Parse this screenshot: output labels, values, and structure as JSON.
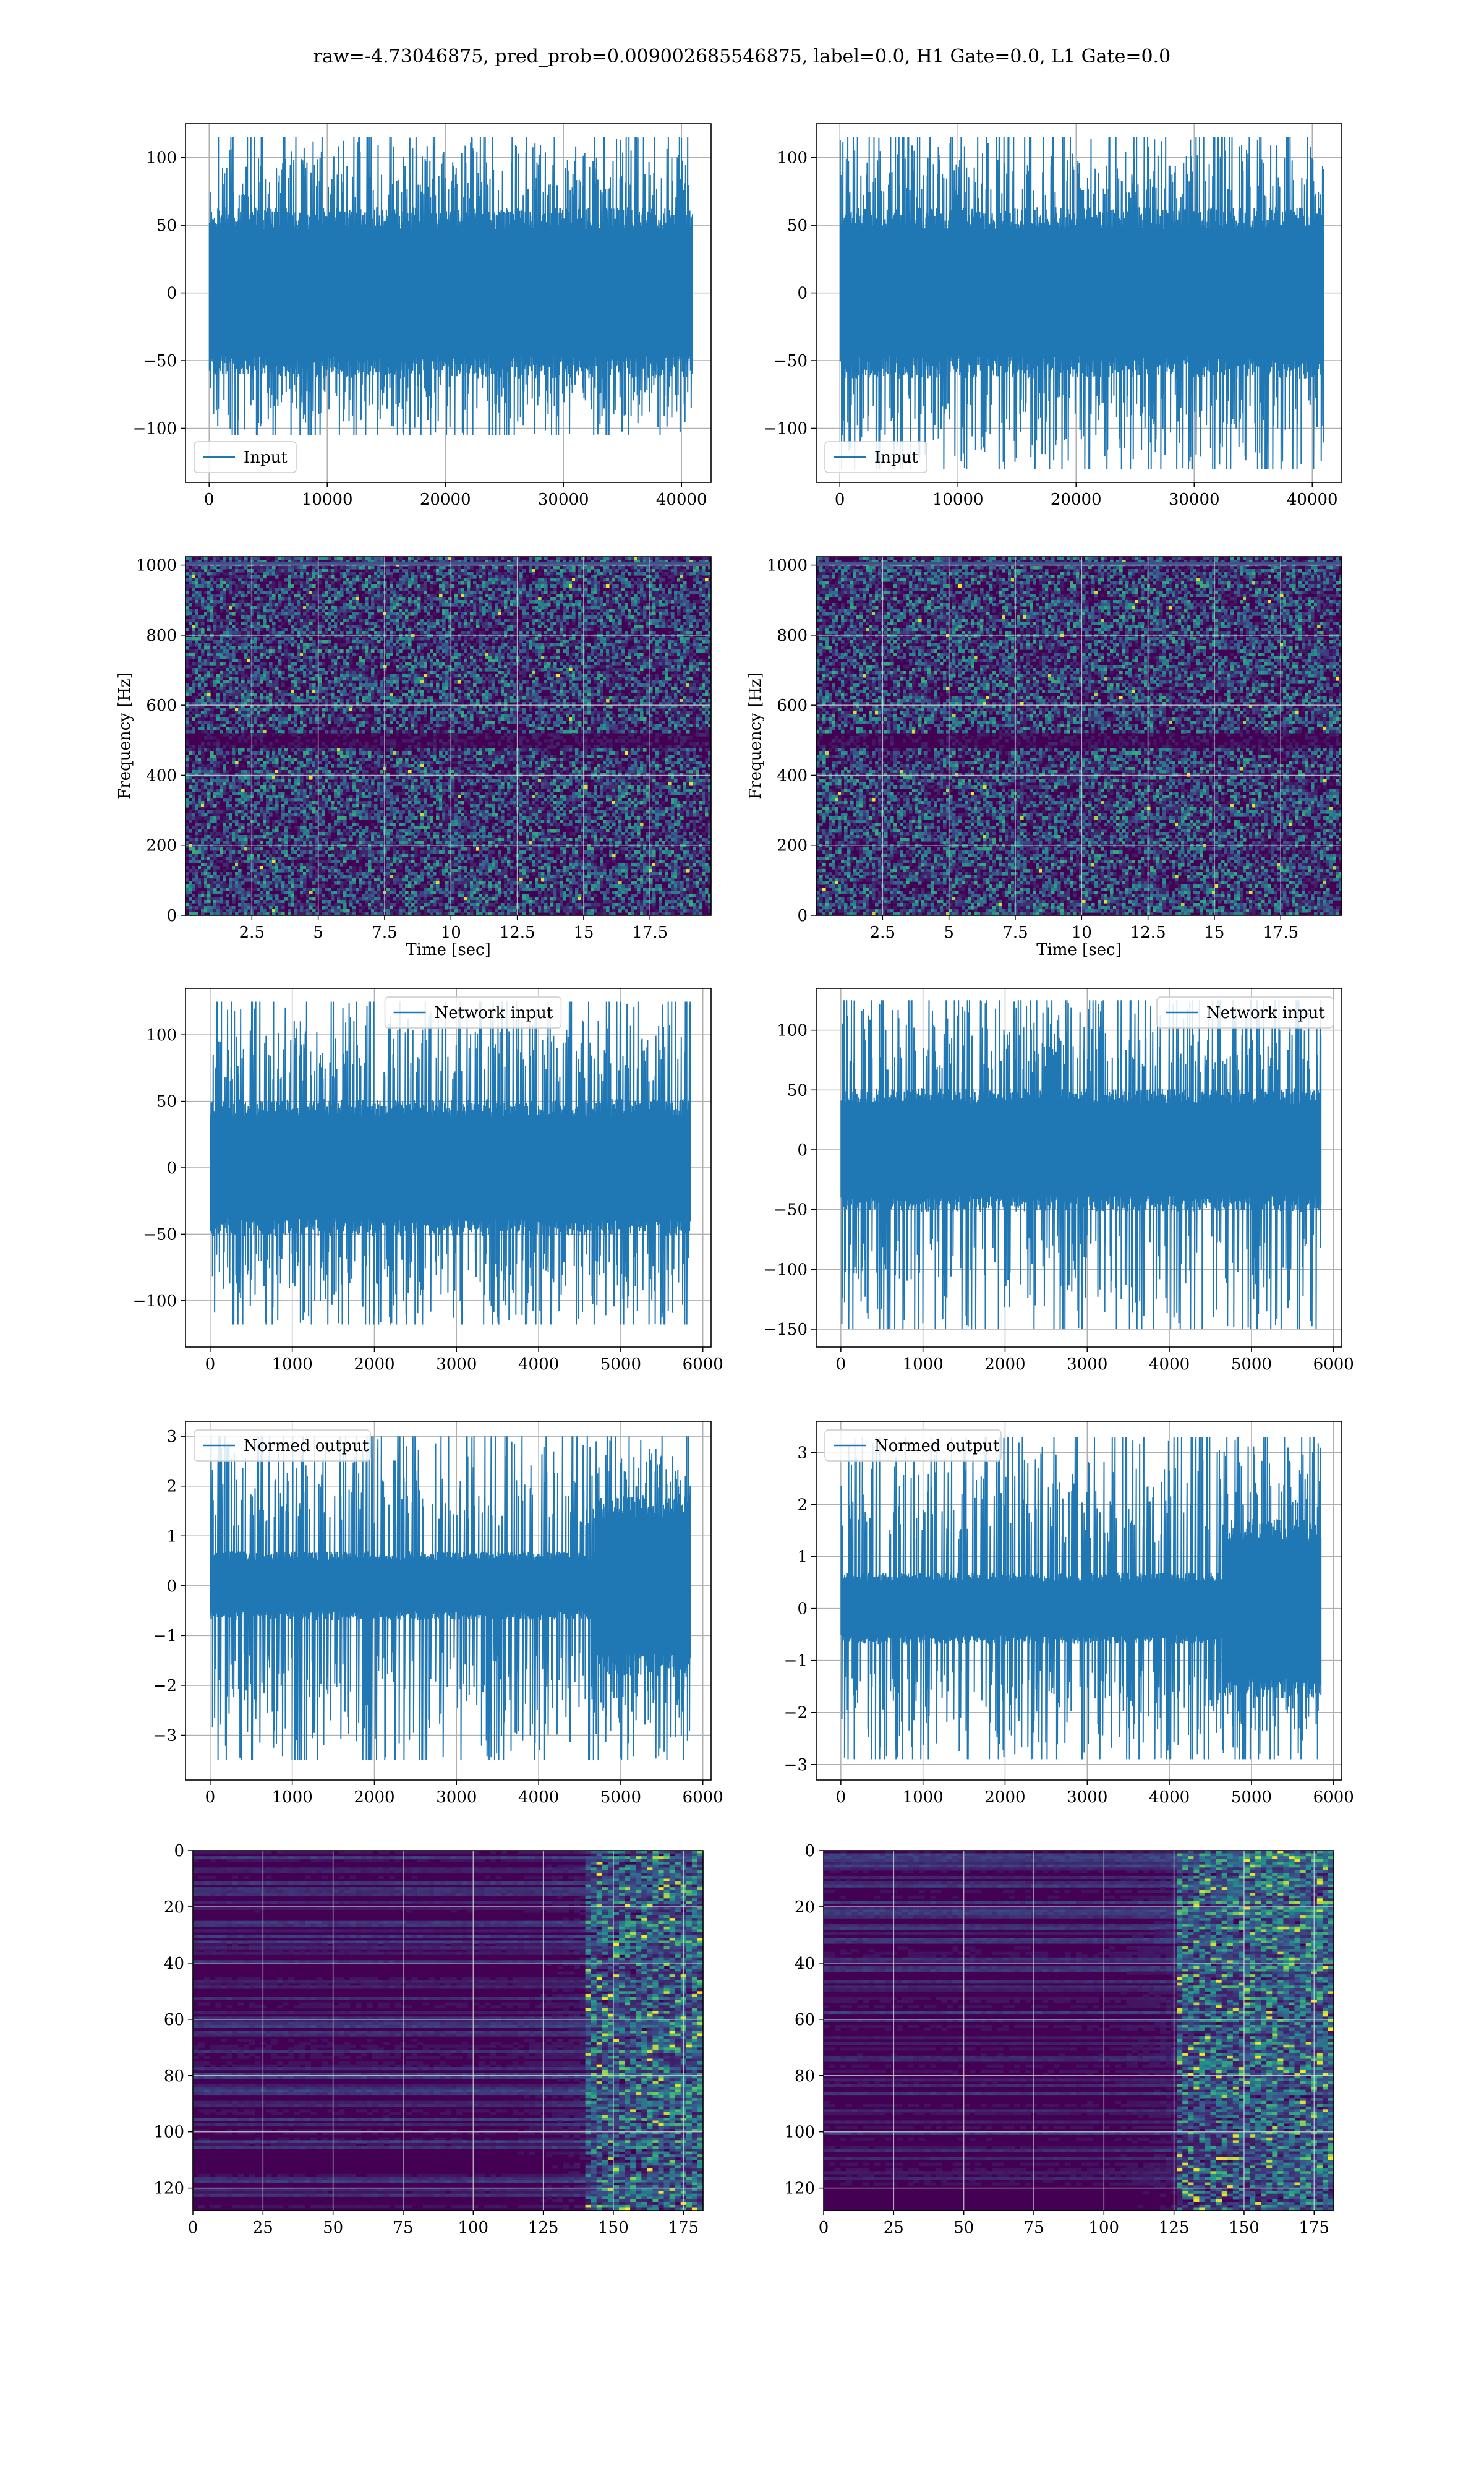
{
  "figure_title": "raw=-4.73046875, pred_prob=0.009002685546875, label=0.0, H1 Gate=0.0, L1 Gate=0.0",
  "colors": {
    "line": "#1f77b4",
    "grid": "#b0b0b0",
    "viridis_low": "#440154",
    "viridis_high": "#fde725"
  },
  "chart_data": [
    {
      "id": "h1-input",
      "type": "line",
      "legend": "Input",
      "legend_pos": "lower-left",
      "xlim": [
        -2000,
        42500
      ],
      "ylim": [
        -140,
        125
      ],
      "xticks": [
        0,
        10000,
        20000,
        30000,
        40000
      ],
      "yticks": [
        -100,
        -50,
        0,
        50,
        100
      ],
      "n_samples": 40960,
      "envelope": [
        -105,
        115
      ],
      "core_amplitude": 55,
      "grid": true
    },
    {
      "id": "l1-input",
      "type": "line",
      "legend": "Input",
      "legend_pos": "lower-left",
      "xlim": [
        -2000,
        42500
      ],
      "ylim": [
        -140,
        125
      ],
      "xticks": [
        0,
        10000,
        20000,
        30000,
        40000
      ],
      "yticks": [
        -100,
        -50,
        0,
        50,
        100
      ],
      "n_samples": 40960,
      "envelope": [
        -130,
        115
      ],
      "core_amplitude": 55,
      "grid": true
    },
    {
      "id": "h1-spectrogram",
      "type": "heatmap",
      "xlabel": "Time [sec]",
      "ylabel": "Frequency [Hz]",
      "xlim": [
        0,
        19.8
      ],
      "ylim": [
        0,
        1024
      ],
      "xticks": [
        2.5,
        5.0,
        7.5,
        10.0,
        12.5,
        15.0,
        17.5
      ],
      "yticks": [
        0,
        200,
        400,
        600,
        800,
        1000
      ],
      "colormap": "viridis",
      "dark_band_hz": [
        480,
        520
      ],
      "grid": true
    },
    {
      "id": "l1-spectrogram",
      "type": "heatmap",
      "xlabel": "Time [sec]",
      "ylabel": "Frequency [Hz]",
      "xlim": [
        0,
        19.8
      ],
      "ylim": [
        0,
        1024
      ],
      "xticks": [
        2.5,
        5.0,
        7.5,
        10.0,
        12.5,
        15.0,
        17.5
      ],
      "yticks": [
        0,
        200,
        400,
        600,
        800,
        1000
      ],
      "colormap": "viridis",
      "dark_band_hz": [
        480,
        520
      ],
      "grid": true
    },
    {
      "id": "h1-network-input",
      "type": "line",
      "legend": "Network input",
      "legend_pos": "top-center",
      "xlim": [
        -300,
        6100
      ],
      "ylim": [
        -135,
        135
      ],
      "xticks": [
        0,
        1000,
        2000,
        3000,
        4000,
        5000,
        6000
      ],
      "yticks": [
        -100,
        -50,
        0,
        50,
        100
      ],
      "n_samples": 5850,
      "envelope": [
        -118,
        125
      ],
      "core_amplitude": 45,
      "grid": true
    },
    {
      "id": "l1-network-input",
      "type": "line",
      "legend": "Network input",
      "legend_pos": "top-right",
      "xlim": [
        -300,
        6100
      ],
      "ylim": [
        -165,
        135
      ],
      "xticks": [
        0,
        1000,
        2000,
        3000,
        4000,
        5000,
        6000
      ],
      "yticks": [
        -150,
        -100,
        -50,
        0,
        50,
        100
      ],
      "n_samples": 5850,
      "envelope": [
        -150,
        125
      ],
      "core_amplitude": 45,
      "grid": true
    },
    {
      "id": "h1-normed-output",
      "type": "line",
      "legend": "Normed output",
      "legend_pos": "top-left",
      "xlim": [
        -300,
        6100
      ],
      "ylim": [
        -3.9,
        3.3
      ],
      "xticks": [
        0,
        1000,
        2000,
        3000,
        4000,
        5000,
        6000
      ],
      "yticks": [
        -3,
        -2,
        -1,
        0,
        1,
        2,
        3
      ],
      "n_samples": 5850,
      "envelope": [
        -3.5,
        3.0
      ],
      "core_amplitude": 0.6,
      "burst": {
        "start": 4700,
        "end": 5850,
        "amplitude": 1.6
      },
      "grid": true
    },
    {
      "id": "l1-normed-output",
      "type": "line",
      "legend": "Normed output",
      "legend_pos": "top-left",
      "xlim": [
        -300,
        6100
      ],
      "ylim": [
        -3.3,
        3.6
      ],
      "xticks": [
        0,
        1000,
        2000,
        3000,
        4000,
        5000,
        6000
      ],
      "yticks": [
        -3,
        -2,
        -1,
        0,
        1,
        2,
        3
      ],
      "n_samples": 5850,
      "envelope": [
        -2.9,
        3.3
      ],
      "core_amplitude": 0.6,
      "burst": {
        "start": 4650,
        "end": 5850,
        "amplitude": 1.5
      },
      "grid": true
    },
    {
      "id": "h1-feature-map",
      "type": "heatmap",
      "xlim": [
        0,
        182
      ],
      "ylim": [
        128,
        0
      ],
      "xticks": [
        0,
        25,
        50,
        75,
        100,
        125,
        150,
        175
      ],
      "yticks": [
        0,
        20,
        40,
        60,
        80,
        100,
        120
      ],
      "colormap": "viridis",
      "active_from_col": 140,
      "grid": true
    },
    {
      "id": "l1-feature-map",
      "type": "heatmap",
      "xlim": [
        0,
        182
      ],
      "ylim": [
        128,
        0
      ],
      "xticks": [
        0,
        25,
        50,
        75,
        100,
        125,
        150,
        175
      ],
      "yticks": [
        0,
        20,
        40,
        60,
        80,
        100,
        120
      ],
      "colormap": "viridis",
      "active_from_col": 125,
      "grid": true
    }
  ]
}
